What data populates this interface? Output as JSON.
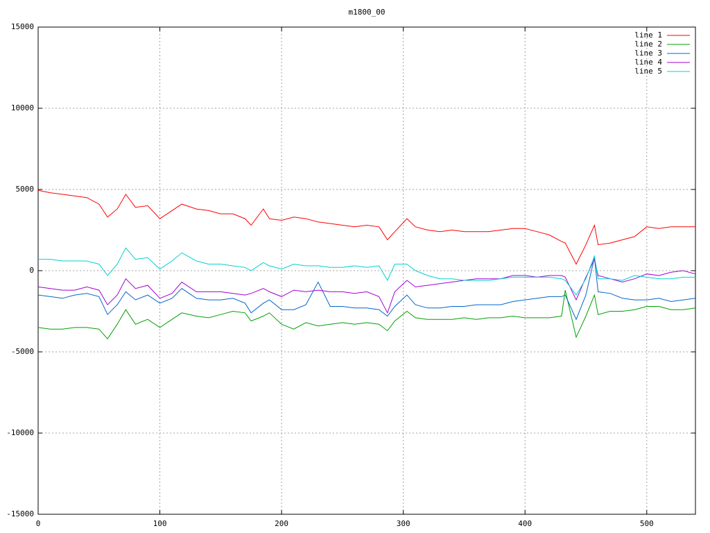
{
  "chart_data": {
    "type": "line",
    "title": "m1800_00",
    "x": [
      0,
      10,
      20,
      30,
      40,
      50,
      57,
      65,
      72,
      80,
      90,
      100,
      110,
      118,
      130,
      140,
      150,
      160,
      170,
      175,
      185,
      190,
      200,
      210,
      220,
      230,
      240,
      250,
      260,
      270,
      280,
      287,
      293,
      303,
      310,
      320,
      330,
      340,
      350,
      360,
      370,
      380,
      390,
      400,
      410,
      420,
      430,
      433,
      442,
      450,
      457,
      460,
      470,
      480,
      490,
      500,
      510,
      520,
      530,
      540
    ],
    "series": [
      {
        "name": "line 1",
        "color": "#ff0000",
        "values": [
          4950,
          4800,
          4700,
          4600,
          4500,
          4100,
          3300,
          3800,
          4700,
          3900,
          4000,
          3200,
          3700,
          4100,
          3800,
          3700,
          3500,
          3500,
          3200,
          2800,
          3800,
          3200,
          3100,
          3300,
          3200,
          3000,
          2900,
          2800,
          2700,
          2800,
          2700,
          1900,
          2400,
          3200,
          2700,
          2500,
          2400,
          2500,
          2400,
          2400,
          2400,
          2500,
          2600,
          2600,
          2400,
          2200,
          1800,
          1700,
          400,
          1600,
          2800,
          1600,
          1700,
          1900,
          2100,
          2700,
          2600,
          2700,
          2700,
          2700
        ]
      },
      {
        "name": "line 2",
        "color": "#00a000",
        "values": [
          -3500,
          -3600,
          -3600,
          -3500,
          -3500,
          -3600,
          -4200,
          -3300,
          -2400,
          -3300,
          -3000,
          -3500,
          -3000,
          -2600,
          -2800,
          -2900,
          -2700,
          -2500,
          -2600,
          -3100,
          -2800,
          -2600,
          -3300,
          -3600,
          -3200,
          -3400,
          -3300,
          -3200,
          -3300,
          -3200,
          -3300,
          -3700,
          -3100,
          -2500,
          -2900,
          -3000,
          -3000,
          -3000,
          -2900,
          -3000,
          -2900,
          -2900,
          -2800,
          -2900,
          -2900,
          -2900,
          -2800,
          -1200,
          -4100,
          -2800,
          -1500,
          -2700,
          -2500,
          -2500,
          -2400,
          -2200,
          -2200,
          -2400,
          -2400,
          -2300
        ]
      },
      {
        "name": "line 3",
        "color": "#0066cc",
        "values": [
          -1500,
          -1600,
          -1700,
          -1500,
          -1400,
          -1600,
          -2700,
          -2100,
          -1300,
          -1800,
          -1500,
          -2000,
          -1700,
          -1100,
          -1700,
          -1800,
          -1800,
          -1700,
          -2000,
          -2600,
          -2000,
          -1800,
          -2400,
          -2400,
          -2100,
          -700,
          -2200,
          -2200,
          -2300,
          -2300,
          -2400,
          -2800,
          -2200,
          -1500,
          -2100,
          -2300,
          -2300,
          -2200,
          -2200,
          -2100,
          -2100,
          -2100,
          -1900,
          -1800,
          -1700,
          -1600,
          -1600,
          -1500,
          -3000,
          -1500,
          800,
          -1300,
          -1400,
          -1700,
          -1800,
          -1800,
          -1700,
          -1900,
          -1800,
          -1700
        ]
      },
      {
        "name": "line 4",
        "color": "#a000d0",
        "values": [
          -1000,
          -1100,
          -1200,
          -1200,
          -1000,
          -1200,
          -2100,
          -1500,
          -500,
          -1100,
          -900,
          -1700,
          -1400,
          -700,
          -1300,
          -1300,
          -1300,
          -1400,
          -1500,
          -1400,
          -1100,
          -1300,
          -1600,
          -1200,
          -1300,
          -1200,
          -1300,
          -1300,
          -1400,
          -1300,
          -1600,
          -2600,
          -1300,
          -600,
          -1000,
          -900,
          -800,
          -700,
          -600,
          -500,
          -500,
          -500,
          -300,
          -300,
          -400,
          -300,
          -300,
          -400,
          -1800,
          -400,
          700,
          -300,
          -500,
          -700,
          -500,
          -200,
          -300,
          -100,
          0,
          -200
        ]
      },
      {
        "name": "line 5",
        "color": "#00d0d0",
        "values": [
          700,
          700,
          600,
          600,
          600,
          400,
          -300,
          400,
          1400,
          700,
          800,
          100,
          600,
          1100,
          600,
          400,
          400,
          300,
          200,
          0,
          500,
          300,
          100,
          400,
          300,
          300,
          200,
          200,
          300,
          200,
          300,
          -600,
          400,
          400,
          0,
          -300,
          -500,
          -500,
          -600,
          -600,
          -600,
          -500,
          -400,
          -400,
          -400,
          -400,
          -500,
          -600,
          -1500,
          -500,
          900,
          -500,
          -500,
          -600,
          -300,
          -400,
          -500,
          -500,
          -400,
          -400
        ]
      }
    ],
    "xlim": [
      0,
      540
    ],
    "xticks": [
      0,
      100,
      200,
      300,
      400,
      500
    ],
    "ylim": [
      -15000,
      15000
    ],
    "yticks": [
      -15000,
      -10000,
      -5000,
      0,
      5000,
      10000,
      15000
    ],
    "grid": true,
    "legend": "top-right"
  }
}
